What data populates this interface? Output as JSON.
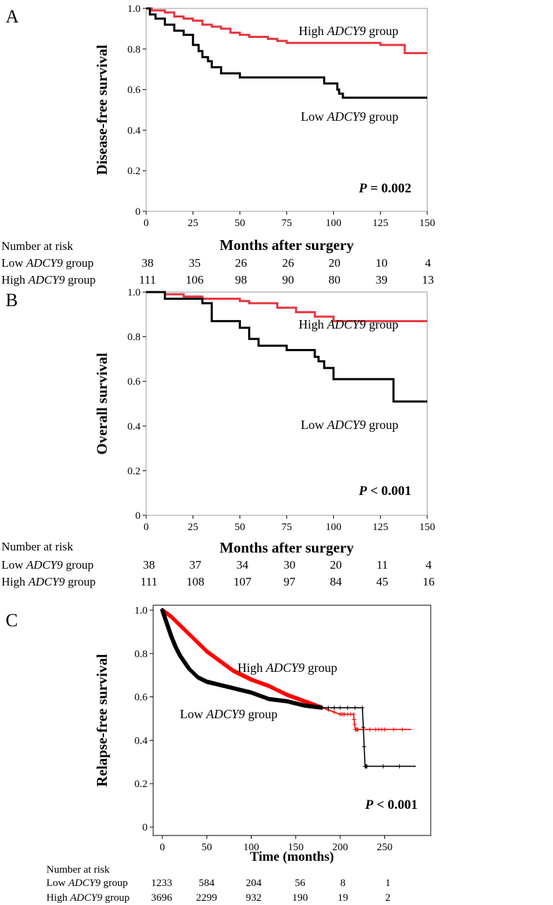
{
  "colors": {
    "high": "#e8353f",
    "low": "#000000",
    "high_c": "#ff0000",
    "frame": "#aaaaaa"
  },
  "number_at_risk_heading": "Number at risk",
  "chart_data": [
    {
      "panel": "A",
      "type": "line",
      "step": true,
      "title": "",
      "ylabel": "Disease-free survival",
      "xlabel": "Months after surgery",
      "xlim": [
        0,
        150
      ],
      "ylim": [
        0,
        1.0
      ],
      "xticks": [
        "0",
        "25",
        "50",
        "75",
        "100",
        "125",
        "150"
      ],
      "yticks": [
        "0",
        "0.2",
        "0.4",
        "0.6",
        "0.8",
        "1.0"
      ],
      "p_value": {
        "italic": "P",
        "rest": " = 0.002"
      },
      "series": [
        {
          "name_pre": "High ",
          "name_italic": "ADCY9",
          "name_post": " group",
          "color_key": "high",
          "x": [
            0,
            3,
            10,
            15,
            20,
            25,
            30,
            35,
            40,
            45,
            50,
            55,
            60,
            65,
            70,
            75,
            100,
            125,
            138,
            150
          ],
          "y": [
            1.0,
            0.99,
            0.98,
            0.96,
            0.95,
            0.94,
            0.92,
            0.91,
            0.9,
            0.88,
            0.87,
            0.86,
            0.86,
            0.85,
            0.84,
            0.83,
            0.83,
            0.82,
            0.78,
            0.78
          ]
        },
        {
          "name_pre": "Low ",
          "name_italic": "ADCY9",
          "name_post": " group",
          "color_key": "low",
          "x": [
            0,
            2,
            5,
            10,
            15,
            20,
            25,
            28,
            30,
            33,
            35,
            37,
            40,
            45,
            50,
            95,
            100,
            102,
            103,
            105,
            150
          ],
          "y": [
            1.0,
            0.97,
            0.95,
            0.92,
            0.89,
            0.87,
            0.82,
            0.79,
            0.76,
            0.74,
            0.71,
            0.71,
            0.68,
            0.68,
            0.66,
            0.63,
            0.63,
            0.6,
            0.58,
            0.56,
            0.56
          ]
        }
      ],
      "risk_table": {
        "rows": [
          {
            "label_pre": "Low ",
            "label_italic": "ADCY9",
            "label_post": " group",
            "values": [
              "38",
              "35",
              "26",
              "26",
              "20",
              "10",
              "4"
            ]
          },
          {
            "label_pre": "High ",
            "label_italic": "ADCY9",
            "label_post": " group",
            "values": [
              "111",
              "106",
              "98",
              "90",
              "80",
              "39",
              "13"
            ]
          }
        ]
      }
    },
    {
      "panel": "B",
      "type": "line",
      "step": true,
      "title": "",
      "ylabel": "Overall survival",
      "xlabel": "Months after surgery",
      "xlim": [
        0,
        150
      ],
      "ylim": [
        0,
        1.0
      ],
      "xticks": [
        "0",
        "25",
        "50",
        "75",
        "100",
        "125",
        "150"
      ],
      "yticks": [
        "0",
        "0.2",
        "0.4",
        "0.6",
        "0.8",
        "1.0"
      ],
      "p_value": {
        "italic": "P",
        "rest": " < 0.001"
      },
      "series": [
        {
          "name_pre": "High ",
          "name_italic": "ADCY9",
          "name_post": " group",
          "color_key": "high",
          "x": [
            0,
            10,
            20,
            30,
            50,
            55,
            70,
            80,
            90,
            100,
            150
          ],
          "y": [
            1.0,
            0.99,
            0.98,
            0.97,
            0.96,
            0.95,
            0.93,
            0.91,
            0.89,
            0.87,
            0.87
          ]
        },
        {
          "name_pre": "Low ",
          "name_italic": "ADCY9",
          "name_post": " group",
          "color_key": "low",
          "x": [
            0,
            10,
            25,
            30,
            35,
            50,
            55,
            60,
            75,
            90,
            92,
            95,
            100,
            130,
            132,
            150
          ],
          "y": [
            1.0,
            0.97,
            0.97,
            0.95,
            0.87,
            0.84,
            0.79,
            0.76,
            0.74,
            0.71,
            0.69,
            0.66,
            0.61,
            0.61,
            0.51,
            0.51
          ]
        }
      ],
      "risk_table": {
        "rows": [
          {
            "label_pre": "Low ",
            "label_italic": "ADCY9",
            "label_post": " group",
            "values": [
              "38",
              "37",
              "34",
              "30",
              "20",
              "11",
              "4"
            ]
          },
          {
            "label_pre": "High ",
            "label_italic": "ADCY9",
            "label_post": " group",
            "values": [
              "111",
              "108",
              "107",
              "97",
              "84",
              "45",
              "16"
            ]
          }
        ]
      }
    },
    {
      "panel": "C",
      "type": "line",
      "step": false,
      "title": "",
      "ylabel": "Relapse-free survival",
      "xlabel": "Time (months)",
      "xlim": [
        0,
        290
      ],
      "ylim": [
        0,
        1.0
      ],
      "xticks": [
        "0",
        "50",
        "100",
        "150",
        "200",
        "250"
      ],
      "yticks": [
        "0",
        "0.2",
        "0.4",
        "0.6",
        "0.8",
        "1.0"
      ],
      "p_value": {
        "italic": "P",
        "rest": " < 0.001"
      },
      "series": [
        {
          "name_pre": "High ",
          "name_italic": "ADCY9",
          "name_post": " group",
          "color_key": "high_c",
          "x": [
            0,
            10,
            20,
            30,
            40,
            50,
            60,
            70,
            80,
            90,
            100,
            120,
            140,
            160,
            180,
            200,
            205,
            215,
            217,
            220,
            240,
            250,
            280
          ],
          "y": [
            1.0,
            0.97,
            0.93,
            0.89,
            0.85,
            0.81,
            0.78,
            0.75,
            0.72,
            0.7,
            0.68,
            0.65,
            0.61,
            0.58,
            0.55,
            0.52,
            0.52,
            0.52,
            0.45,
            0.45,
            0.45,
            0.45,
            0.45
          ]
        },
        {
          "name_pre": "Low ",
          "name_italic": "ADCY9",
          "name_post": " group",
          "color_key": "low",
          "x": [
            0,
            5,
            10,
            15,
            20,
            25,
            30,
            40,
            50,
            60,
            80,
            100,
            120,
            140,
            160,
            180,
            200,
            225,
            228,
            230,
            285
          ],
          "y": [
            1.0,
            0.94,
            0.88,
            0.83,
            0.79,
            0.76,
            0.73,
            0.69,
            0.67,
            0.66,
            0.64,
            0.62,
            0.59,
            0.58,
            0.56,
            0.55,
            0.55,
            0.55,
            0.28,
            0.28,
            0.28
          ]
        }
      ],
      "risk_table": {
        "rows": [
          {
            "label_pre": "Low ",
            "label_italic": "ADCY9",
            "label_post": " group",
            "values": [
              "1233",
              "584",
              "204",
              "56",
              "8",
              "1"
            ]
          },
          {
            "label_pre": "High ",
            "label_italic": "ADCY9",
            "label_post": " group",
            "values": [
              "3696",
              "2299",
              "932",
              "190",
              "19",
              "2"
            ]
          }
        ]
      }
    }
  ]
}
